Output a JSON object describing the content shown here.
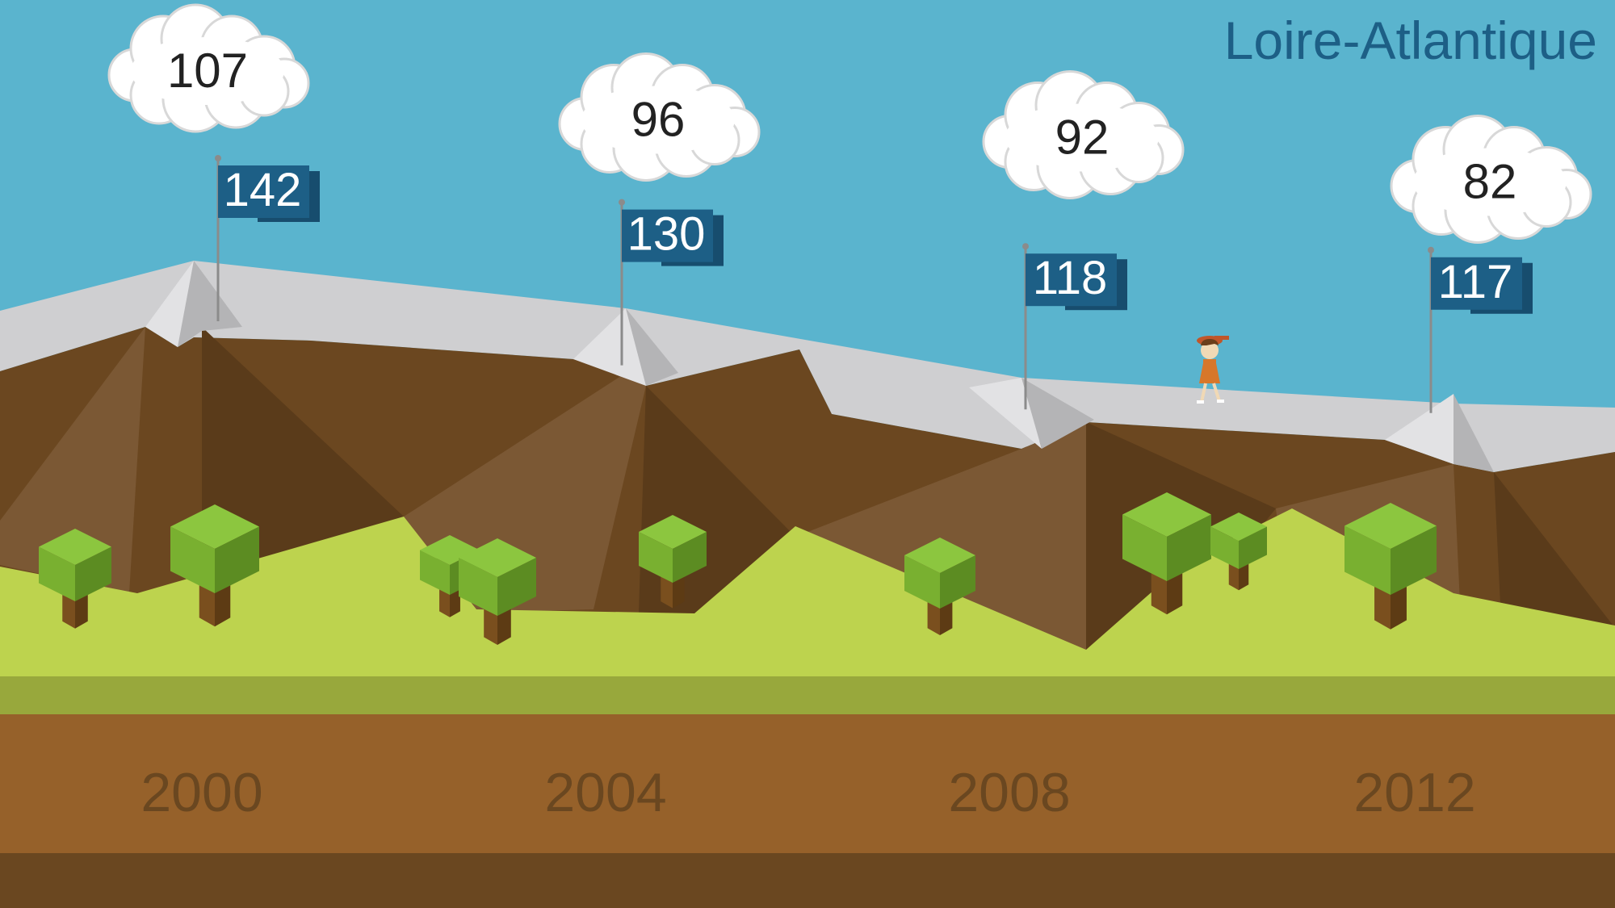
{
  "title": "Loire-Atlantique",
  "colors": {
    "sky": "#5ab4ce",
    "title_text": "#1d5f86",
    "snow": "#cfcfd1",
    "mountain": "#6b4720",
    "grass": "#bdd34e",
    "grass_band": "#98a83c",
    "soil": "#96612a",
    "soil_dark": "#6a4720",
    "flag": "#1d5f86",
    "year_text": "#6a4720"
  },
  "chart_data": {
    "type": "line",
    "x": [
      2000,
      2004,
      2008,
      2012
    ],
    "x_labels": [
      "2000",
      "2004",
      "2008",
      "2012"
    ],
    "series": [
      {
        "name": "",
        "marker": "flag",
        "values": [
          142,
          130,
          118,
          117
        ]
      },
      {
        "name": "",
        "marker": "cloud",
        "values": [
          107,
          96,
          92,
          82
        ]
      }
    ]
  }
}
